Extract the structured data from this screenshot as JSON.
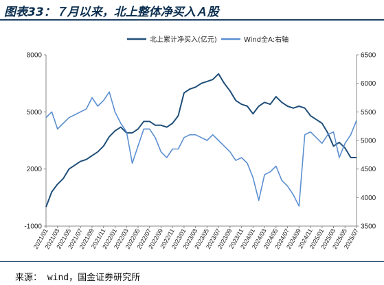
{
  "header": {
    "title": "图表33：７月以来，北上整体净买入Ａ股"
  },
  "footer": {
    "source": "来源： wind，国金证券研究所"
  },
  "colors": {
    "northbound": "#1f4e79",
    "wind_all_a": "#5b8fd0",
    "rule": "#1c3f63",
    "axis": "#888888"
  },
  "chart_data": {
    "type": "line",
    "title": "图表33：７月以来，北上整体净买入Ａ股",
    "grid": false,
    "legend_position": "top",
    "x_tick_labels": [
      "2021/01",
      "2021/03",
      "2021/05",
      "2021/07",
      "2021/09",
      "2021/11",
      "2022/01",
      "2022/03",
      "2022/05",
      "2022/07",
      "2022/09",
      "2022/11",
      "2023/01",
      "2023/03",
      "2023/05",
      "2023/07",
      "2023/09",
      "2023/11",
      "2024/01",
      "2024/03",
      "2024/05",
      "2024/07",
      "2024/09",
      "2024/11",
      "2025/01",
      "2025/03",
      "2025/05",
      "2025/07"
    ],
    "x_range": [
      "2021/01",
      "2025/07"
    ],
    "y_left": {
      "range": [
        -1000,
        8000
      ],
      "ticks": [
        -1000,
        2000,
        5000,
        8000
      ]
    },
    "y_right": {
      "range": [
        3500,
        6500
      ],
      "ticks": [
        3500,
        4000,
        4500,
        5000,
        5500,
        6000,
        6500
      ]
    },
    "series": [
      {
        "name": "北上累计净买入(亿元)",
        "axis": "left",
        "color": "#1f4e79",
        "points": [
          [
            "2021/01",
            0
          ],
          [
            "2021/02",
            800
          ],
          [
            "2021/03",
            1200
          ],
          [
            "2021/04",
            1500
          ],
          [
            "2021/05",
            2000
          ],
          [
            "2021/06",
            2200
          ],
          [
            "2021/07",
            2400
          ],
          [
            "2021/08",
            2500
          ],
          [
            "2021/09",
            2700
          ],
          [
            "2021/10",
            2900
          ],
          [
            "2021/11",
            3200
          ],
          [
            "2021/12",
            3700
          ],
          [
            "2022/01",
            4000
          ],
          [
            "2022/02",
            4200
          ],
          [
            "2022/03",
            3900
          ],
          [
            "2022/04",
            3900
          ],
          [
            "2022/05",
            4100
          ],
          [
            "2022/06",
            4500
          ],
          [
            "2022/07",
            4500
          ],
          [
            "2022/08",
            4300
          ],
          [
            "2022/09",
            4300
          ],
          [
            "2022/10",
            4200
          ],
          [
            "2022/11",
            4400
          ],
          [
            "2022/12",
            4800
          ],
          [
            "2023/01",
            6000
          ],
          [
            "2023/02",
            6200
          ],
          [
            "2023/03",
            6300
          ],
          [
            "2023/04",
            6500
          ],
          [
            "2023/05",
            6600
          ],
          [
            "2023/06",
            6700
          ],
          [
            "2023/07",
            7000
          ],
          [
            "2023/08",
            6500
          ],
          [
            "2023/09",
            6100
          ],
          [
            "2023/10",
            5600
          ],
          [
            "2023/11",
            5400
          ],
          [
            "2023/12",
            5300
          ],
          [
            "2024/01",
            4900
          ],
          [
            "2024/02",
            5300
          ],
          [
            "2024/03",
            5500
          ],
          [
            "2024/04",
            5400
          ],
          [
            "2024/05",
            5800
          ],
          [
            "2024/06",
            5500
          ],
          [
            "2024/07",
            5300
          ],
          [
            "2024/08",
            5200
          ],
          [
            "2024/09",
            5300
          ],
          [
            "2024/10",
            5200
          ],
          [
            "2024/11",
            4800
          ],
          [
            "2024/12",
            4600
          ],
          [
            "2025/01",
            4400
          ],
          [
            "2025/02",
            3900
          ],
          [
            "2025/03",
            3200
          ],
          [
            "2025/04",
            3400
          ],
          [
            "2025/05",
            3100
          ],
          [
            "2025/06",
            2600
          ],
          [
            "2025/07",
            2600
          ]
        ]
      },
      {
        "name": "Wind全A:右轴",
        "axis": "right",
        "color": "#5b8fd0",
        "points": [
          [
            "2021/01",
            5400
          ],
          [
            "2021/02",
            5500
          ],
          [
            "2021/03",
            5200
          ],
          [
            "2021/04",
            5300
          ],
          [
            "2021/05",
            5400
          ],
          [
            "2021/06",
            5450
          ],
          [
            "2021/07",
            5500
          ],
          [
            "2021/08",
            5550
          ],
          [
            "2021/09",
            5750
          ],
          [
            "2021/10",
            5600
          ],
          [
            "2021/11",
            5700
          ],
          [
            "2021/12",
            5850
          ],
          [
            "2022/01",
            5500
          ],
          [
            "2022/02",
            5300
          ],
          [
            "2022/03",
            5150
          ],
          [
            "2022/04",
            4600
          ],
          [
            "2022/05",
            4900
          ],
          [
            "2022/06",
            5200
          ],
          [
            "2022/07",
            5200
          ],
          [
            "2022/08",
            5050
          ],
          [
            "2022/09",
            4800
          ],
          [
            "2022/10",
            4700
          ],
          [
            "2022/11",
            4850
          ],
          [
            "2022/12",
            4850
          ],
          [
            "2023/01",
            5050
          ],
          [
            "2023/02",
            5100
          ],
          [
            "2023/03",
            5100
          ],
          [
            "2023/04",
            5050
          ],
          [
            "2023/05",
            5000
          ],
          [
            "2023/06",
            5100
          ],
          [
            "2023/07",
            5000
          ],
          [
            "2023/08",
            4900
          ],
          [
            "2023/09",
            4800
          ],
          [
            "2023/10",
            4650
          ],
          [
            "2023/11",
            4700
          ],
          [
            "2023/12",
            4600
          ],
          [
            "2024/01",
            4350
          ],
          [
            "2024/02",
            3950
          ],
          [
            "2024/03",
            4400
          ],
          [
            "2024/04",
            4450
          ],
          [
            "2024/05",
            4550
          ],
          [
            "2024/06",
            4300
          ],
          [
            "2024/07",
            4200
          ],
          [
            "2024/08",
            4050
          ],
          [
            "2024/09",
            3850
          ],
          [
            "2024/10",
            5100
          ],
          [
            "2024/11",
            5150
          ],
          [
            "2024/12",
            5050
          ],
          [
            "2025/01",
            4950
          ],
          [
            "2025/02",
            5100
          ],
          [
            "2025/03",
            5150
          ],
          [
            "2025/04",
            4700
          ],
          [
            "2025/05",
            4950
          ],
          [
            "2025/06",
            5100
          ],
          [
            "2025/07",
            5350
          ]
        ]
      }
    ]
  }
}
